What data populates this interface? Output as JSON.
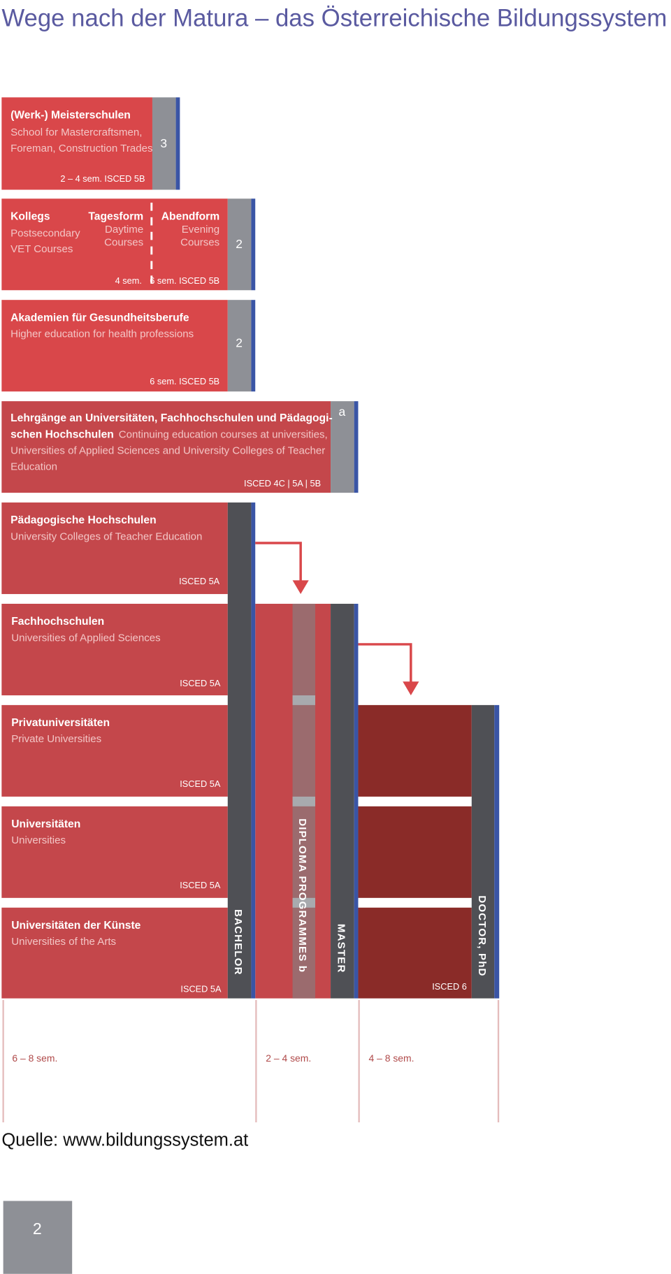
{
  "title": "Wege nach der Matura – das Österreichische Bildungssystem",
  "blocks": [
    {
      "title": "(Werk-) Meisterschulen",
      "lines": [
        "School for Mastercraftsmen,",
        "Foreman, Construction Trades"
      ],
      "note": "2 – 4 sem.  ISCED 5B",
      "years": 3
    },
    {
      "title": "Kollegs",
      "lines": [
        "Postsecondary",
        "VET Courses"
      ],
      "day": {
        "title": "Tagesform",
        "lines": [
          "Daytime",
          "Courses"
        ],
        "note": "4 sem."
      },
      "evening": {
        "title": "Abendform",
        "lines": [
          "Evening",
          "Courses"
        ]
      },
      "note": "6 sem.  ISCED 5B",
      "years": 2
    },
    {
      "title": "Akademien für Gesundheitsberufe",
      "lines": [
        "Higher education for health professions"
      ],
      "note": "6 sem.  ISCED 5B",
      "years": 2
    },
    {
      "title_lines": [
        "Lehrgänge an Universitäten, Fachhochschulen und Pädagogi-",
        "schen Hochschulen"
      ],
      "lines": [
        "Continuing education courses at universities,",
        "Universities of Applied Sciences and University Colleges of Teacher",
        "Education"
      ],
      "note": "ISCED 4C  |  5A  |  5B",
      "years": "a"
    },
    {
      "title": "Pädagogische Hochschulen",
      "lines": [
        "University Colleges of Teacher Education"
      ],
      "note": "ISCED 5A"
    },
    {
      "title": "Fachhochschulen",
      "lines": [
        "Universities of Applied Sciences"
      ],
      "note": "ISCED 5A"
    },
    {
      "title": "Privatuniversitäten",
      "lines": [
        "Private Universities"
      ],
      "note": "ISCED 5A"
    },
    {
      "title": "Universitäten",
      "lines": [
        "Universities"
      ],
      "note": "ISCED 5A"
    },
    {
      "title": "Universitäten der Künste",
      "lines": [
        "Universities of the Arts"
      ],
      "note": "ISCED 5A"
    }
  ],
  "programs": [
    "BACHELOR",
    "DIPLOMA  PROGRAMMES  b",
    "MASTER",
    "DOCTOR, PhD"
  ],
  "doctor_note": "ISCED 6",
  "durations": [
    "6 – 8 sem.",
    "2 – 4 sem.",
    "4 – 8 sem."
  ],
  "source": "Quelle: www.bildungssystem.at",
  "page_number": 2
}
